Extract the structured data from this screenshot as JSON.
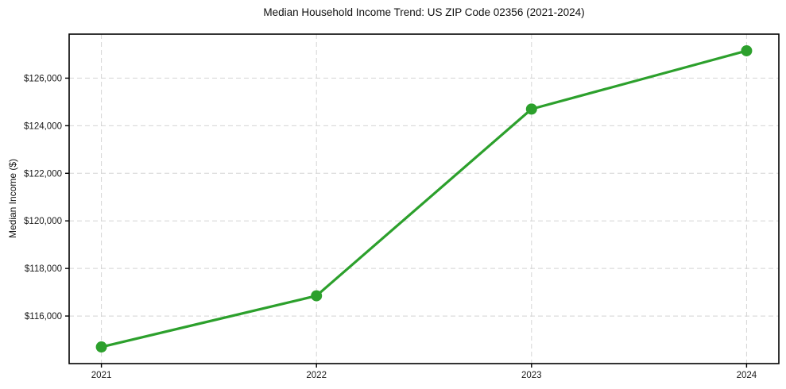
{
  "chart_data": {
    "type": "line",
    "title": "Median Household Income Trend: US ZIP Code 02356 (2021-2024)",
    "xlabel": "",
    "ylabel": "Median Income ($)",
    "x": [
      2021,
      2022,
      2023,
      2024
    ],
    "x_tick_labels": [
      "2021",
      "2022",
      "2023",
      "2024"
    ],
    "series": [
      {
        "name": "Median Household Income",
        "values": [
          114700,
          116850,
          124700,
          127150
        ]
      }
    ],
    "y_ticks": [
      {
        "value": 116000,
        "label": "$116,000"
      },
      {
        "value": 118000,
        "label": "$118,000"
      },
      {
        "value": 120000,
        "label": "$120,000"
      },
      {
        "value": 122000,
        "label": "$122,000"
      },
      {
        "value": 124000,
        "label": "$124,000"
      },
      {
        "value": 126000,
        "label": "$126,000"
      }
    ],
    "xlim": [
      2020.85,
      2024.15
    ],
    "ylim": [
      114000,
      127850
    ],
    "grid": true,
    "grid_style": "dashed",
    "legend": "none",
    "colors": {
      "line": "#2ca02c",
      "marker": "#2ca02c",
      "grid": "#d4d4d4",
      "spine": "#000000",
      "text": "#1a1a1a"
    }
  }
}
